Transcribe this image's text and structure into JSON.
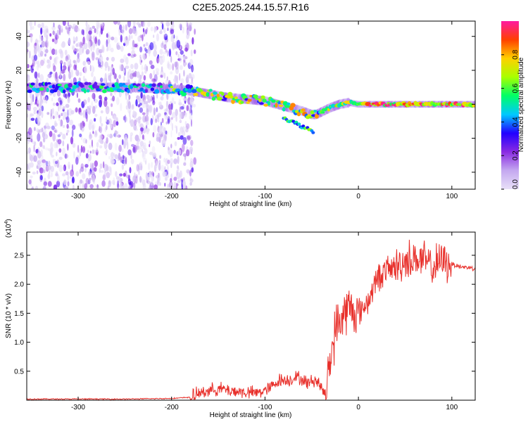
{
  "figure": {
    "title": "C2E5.2025.244.15.57.R16"
  },
  "chart_data": [
    {
      "type": "heatmap",
      "name": "spectrogram",
      "title": "C2E5.2025.244.15.57.R16",
      "xlabel": "Height of straight line (km)",
      "ylabel": "Frequency (Hz)",
      "xlim": [
        -355,
        125
      ],
      "ylim": [
        -50,
        49
      ],
      "xticks": [
        -300,
        -200,
        -100,
        0,
        100
      ],
      "yticks": [
        -40,
        -20,
        0,
        20,
        40
      ],
      "grid": false,
      "colorbar": {
        "label": "Normalized spectral amplitude",
        "range": [
          0,
          1
        ],
        "ticks": [
          0.0,
          0.2,
          0.4,
          0.6,
          0.8
        ],
        "tick_labels": [
          "0.0",
          "0.2",
          "0.4",
          "0.6",
          "0.8"
        ]
      },
      "ridge": {
        "description_points_x_km": [
          -355,
          -300,
          -250,
          -200,
          -180,
          -160,
          -140,
          -120,
          -100,
          -80,
          -60,
          -50,
          -45,
          -30,
          -20,
          -10,
          0,
          50,
          125
        ],
        "frequency_hz": [
          10,
          10,
          10,
          9,
          8,
          6,
          4,
          3,
          2,
          -1,
          -4,
          -6,
          -6,
          -2,
          0,
          1,
          0,
          0,
          0
        ]
      },
      "noise_region_end_km": -185
    },
    {
      "type": "line",
      "name": "snr",
      "xlabel": "Height of straight line (km)",
      "ylabel": "SNR (10 * v/v)",
      "multiplier_label": "(x10",
      "multiplier_exp": "4",
      "xlim": [
        -355,
        125
      ],
      "ylim": [
        0,
        2.9
      ],
      "xticks": [
        -300,
        -200,
        -100,
        0,
        100
      ],
      "yticks": [
        0.5,
        1.0,
        1.5,
        2.0,
        2.5
      ],
      "ytick_labels": [
        "0.5",
        "1.0",
        "1.5",
        "2.0",
        "2.5"
      ],
      "series": [
        {
          "name": "SNR",
          "color": "#e8302b",
          "x": [
            -355,
            -300,
            -250,
            -200,
            -180,
            -165,
            -150,
            -130,
            -110,
            -95,
            -85,
            -75,
            -65,
            -55,
            -45,
            -35,
            -30,
            -25,
            -15,
            -10,
            0,
            10,
            20,
            30,
            40,
            50,
            60,
            70,
            80,
            90,
            100,
            110,
            125
          ],
          "y": [
            0.02,
            0.02,
            0.02,
            0.03,
            0.05,
            0.15,
            0.2,
            0.15,
            0.12,
            0.2,
            0.35,
            0.35,
            0.4,
            0.3,
            0.35,
            0.1,
            0.7,
            1.2,
            1.5,
            1.6,
            1.5,
            1.7,
            2.1,
            2.25,
            2.3,
            2.4,
            2.45,
            2.4,
            2.3,
            2.4,
            2.35,
            2.3,
            2.28
          ]
        }
      ]
    }
  ],
  "colors": {
    "axes": "#000000",
    "snr_line": "#e8302b",
    "colorbar_stops": [
      "#e8e0f8",
      "#c4a8f0",
      "#8a2be2",
      "#2200ff",
      "#00c8ff",
      "#00ff66",
      "#a8ff00",
      "#ffd000",
      "#ff4000",
      "#ff1aa0"
    ]
  }
}
